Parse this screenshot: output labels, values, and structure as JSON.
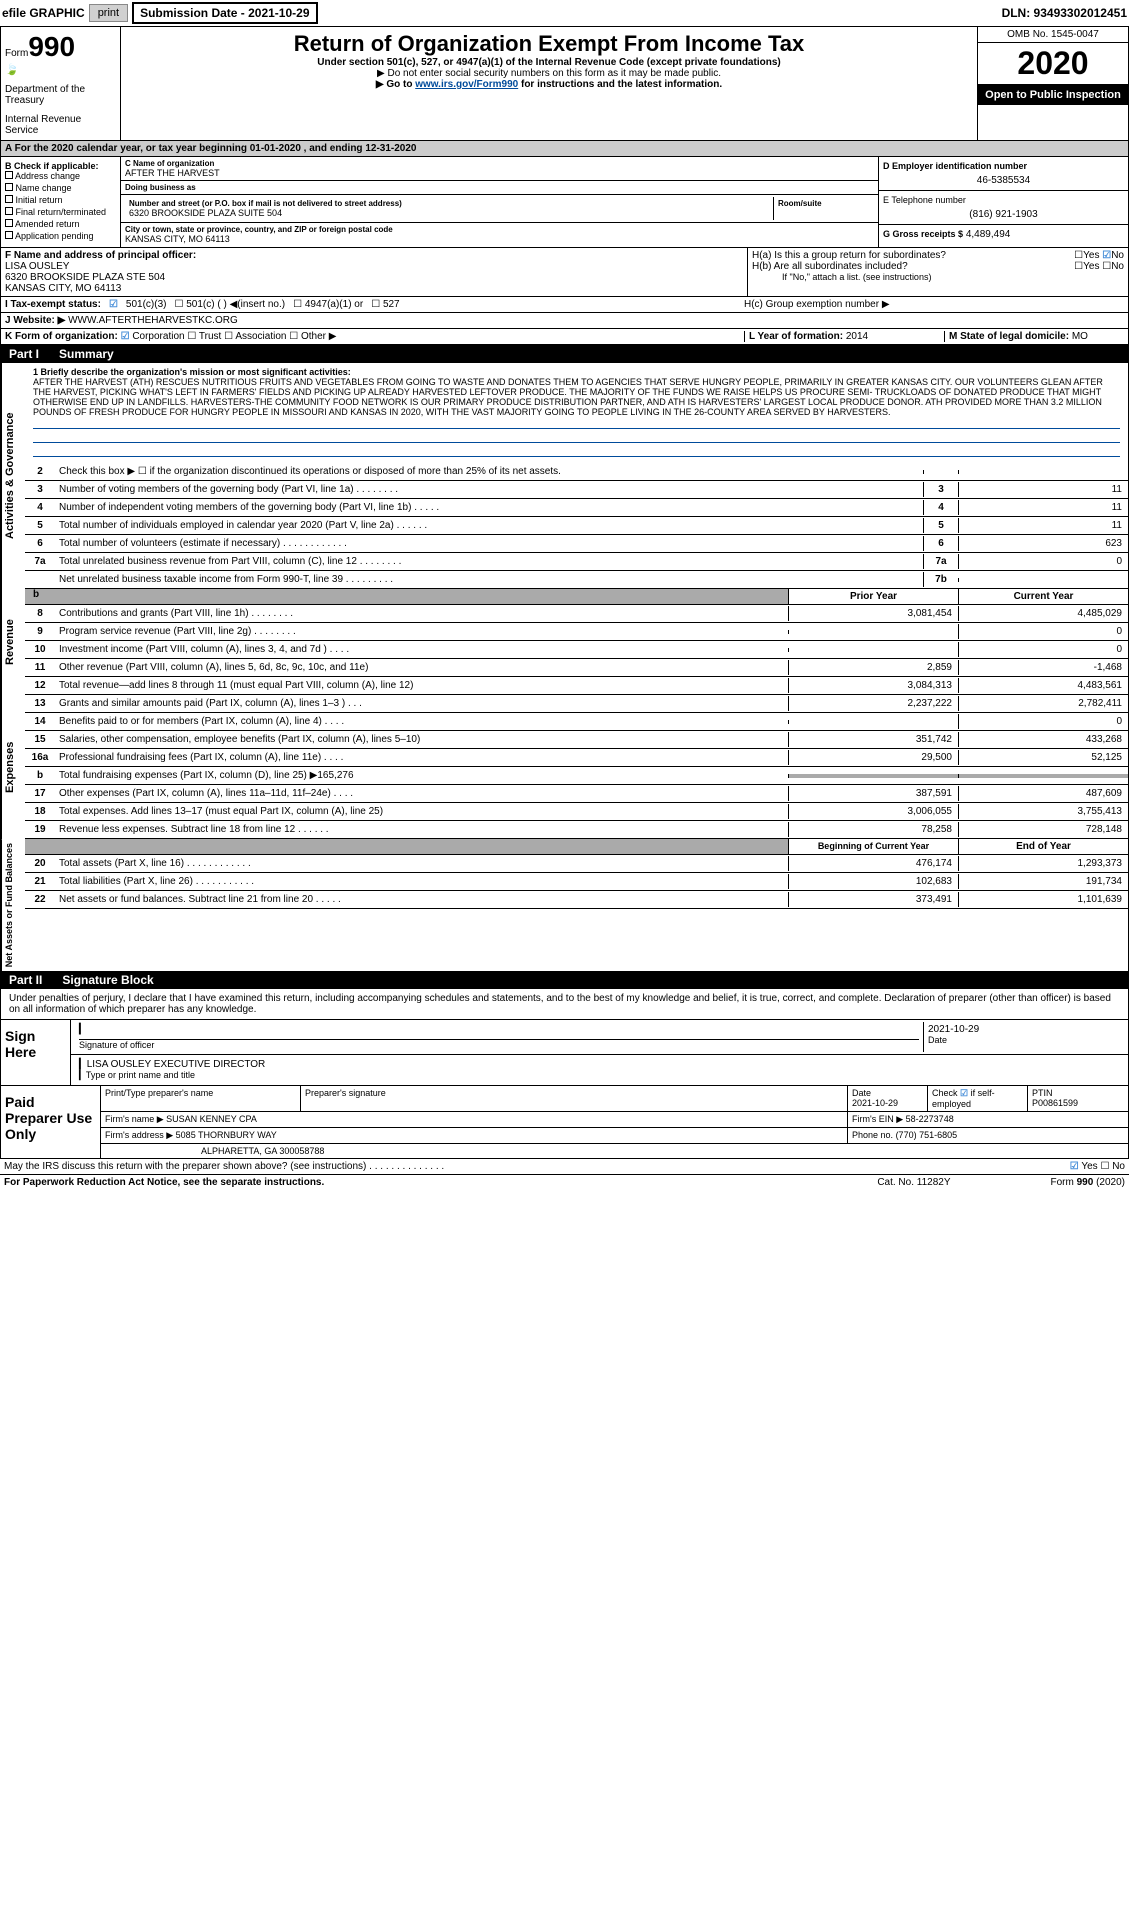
{
  "header": {
    "efile": "efile GRAPHIC",
    "print": "print",
    "subdate_label": "Submission Date - 2021-10-29",
    "dln": "DLN: 93493302012451"
  },
  "form": {
    "prefix": "Form",
    "number": "990",
    "dept": "Department of the Treasury",
    "irs": "Internal Revenue Service"
  },
  "title": {
    "main": "Return of Organization Exempt From Income Tax",
    "sub1": "Under section 501(c), 527, or 4947(a)(1) of the Internal Revenue Code (except private foundations)",
    "sub2": "▶ Do not enter social security numbers on this form as it may be made public.",
    "sub3a": "▶ Go to ",
    "sub3link": "www.irs.gov/Form990",
    "sub3b": " for instructions and the latest information."
  },
  "omb": {
    "num": "OMB No. 1545-0047",
    "year": "2020",
    "open": "Open to Public Inspection"
  },
  "rowA": "A For the 2020 calendar year, or tax year beginning 01-01-2020    , and ending 12-31-2020",
  "b": {
    "label": "B Check if applicable:",
    "opts": [
      "Address change",
      "Name change",
      "Initial return",
      "Final return/terminated",
      "Amended return",
      "Application pending"
    ]
  },
  "c": {
    "name_label": "C Name of organization",
    "name": "AFTER THE HARVEST",
    "dba_label": "Doing business as",
    "dba": "",
    "addr_label": "Number and street (or P.O. box if mail is not delivered to street address)",
    "addr": "6320 BROOKSIDE PLAZA SUITE 504",
    "room_label": "Room/suite",
    "city_label": "City or town, state or province, country, and ZIP or foreign postal code",
    "city": "KANSAS CITY, MO  64113"
  },
  "d": {
    "label": "D Employer identification number",
    "val": "46-5385534"
  },
  "e": {
    "label": "E Telephone number",
    "val": "(816) 921-1903"
  },
  "g": {
    "label": "G Gross receipts $",
    "val": "4,489,494"
  },
  "f": {
    "label": "F  Name and address of principal officer:",
    "name": "LISA OUSLEY",
    "addr": "6320 BROOKSIDE PLAZA STE 504",
    "city": "KANSAS CITY, MO  64113"
  },
  "h": {
    "a": "H(a)  Is this a group return for subordinates?",
    "b": "H(b)  Are all subordinates included?",
    "note": "If \"No,\" attach a list. (see instructions)",
    "c": "H(c)  Group exemption number ▶",
    "yes": "Yes",
    "no": "No"
  },
  "i": {
    "label": "I   Tax-exempt status:",
    "opts": [
      "501(c)(3)",
      "501(c) (  ) ◀(insert no.)",
      "4947(a)(1) or",
      "527"
    ]
  },
  "j": {
    "label": "J   Website: ▶",
    "val": "WWW.AFTERTHEHARVESTKC.ORG"
  },
  "k": {
    "label": "K Form of organization:",
    "opts": [
      "Corporation",
      "Trust",
      "Association",
      "Other ▶"
    ]
  },
  "l": {
    "label": "L Year of formation:",
    "val": "2014"
  },
  "m": {
    "label": "M State of legal domicile:",
    "val": "MO"
  },
  "part1": {
    "num": "Part I",
    "title": "Summary"
  },
  "mission": {
    "label": "1  Briefly describe the organization's mission or most significant activities:",
    "text": "AFTER THE HARVEST (ATH) RESCUES NUTRITIOUS FRUITS AND VEGETABLES FROM GOING TO WASTE AND DONATES THEM TO AGENCIES THAT SERVE HUNGRY PEOPLE, PRIMARILY IN GREATER KANSAS CITY. OUR VOLUNTEERS GLEAN AFTER THE HARVEST, PICKING WHAT'S LEFT IN FARMERS' FIELDS AND PICKING UP ALREADY HARVESTED LEFTOVER PRODUCE. THE MAJORITY OF THE FUNDS WE RAISE HELPS US PROCURE SEMI- TRUCKLOADS OF DONATED PRODUCE THAT MIGHT OTHERWISE END UP IN LANDFILLS. HARVESTERS-THE COMMUNITY FOOD NETWORK IS OUR PRIMARY PRODUCE DISTRIBUTION PARTNER, AND ATH IS HARVESTERS' LARGEST LOCAL PRODUCE DONOR. ATH PROVIDED MORE THAN 3.2 MILLION POUNDS OF FRESH PRODUCE FOR HUNGRY PEOPLE IN MISSOURI AND KANSAS IN 2020, WITH THE VAST MAJORITY GOING TO PEOPLE LIVING IN THE 26-COUNTY AREA SERVED BY HARVESTERS."
  },
  "lines_ag": [
    {
      "n": "2",
      "t": "Check this box ▶ ☐  if the organization discontinued its operations or disposed of more than 25% of its net assets.",
      "b": "",
      "v": ""
    },
    {
      "n": "3",
      "t": "Number of voting members of the governing body (Part VI, line 1a)    .    .    .    .    .    .    .    .",
      "b": "3",
      "v": "11"
    },
    {
      "n": "4",
      "t": "Number of independent voting members of the governing body (Part VI, line 1b)    .    .    .    .    .",
      "b": "4",
      "v": "11"
    },
    {
      "n": "5",
      "t": "Total number of individuals employed in calendar year 2020 (Part V, line 2a)    .    .    .    .    .    .",
      "b": "5",
      "v": "11"
    },
    {
      "n": "6",
      "t": "Total number of volunteers (estimate if necessary)   .    .    .    .    .    .    .    .    .    .    .    .",
      "b": "6",
      "v": "623"
    },
    {
      "n": "7a",
      "t": "Total unrelated business revenue from Part VIII, column (C), line 12   .    .    .    .    .    .    .    .",
      "b": "7a",
      "v": "0"
    },
    {
      "n": "",
      "t": "Net unrelated business taxable income from Form 990-T, line 39    .    .    .    .    .    .    .    .    .",
      "b": "7b",
      "v": ""
    }
  ],
  "headers2": {
    "prior": "Prior Year",
    "current": "Current Year"
  },
  "lines_rev": [
    {
      "n": "8",
      "t": "Contributions and grants (Part VIII, line 1h)   .    .    .    .    .    .    .    .",
      "p": "3,081,454",
      "c": "4,485,029"
    },
    {
      "n": "9",
      "t": "Program service revenue (Part VIII, line 2g)    .    .    .    .    .    .    .    .",
      "p": "",
      "c": "0"
    },
    {
      "n": "10",
      "t": "Investment income (Part VIII, column (A), lines 3, 4, and 7d )    .    .    .    .",
      "p": "",
      "c": "0"
    },
    {
      "n": "11",
      "t": "Other revenue (Part VIII, column (A), lines 5, 6d, 8c, 9c, 10c, and 11e)",
      "p": "2,859",
      "c": "-1,468"
    },
    {
      "n": "12",
      "t": "Total revenue—add lines 8 through 11 (must equal Part VIII, column (A), line 12)",
      "p": "3,084,313",
      "c": "4,483,561"
    }
  ],
  "lines_exp": [
    {
      "n": "13",
      "t": "Grants and similar amounts paid (Part IX, column (A), lines 1–3 )  .    .    .",
      "p": "2,237,222",
      "c": "2,782,411"
    },
    {
      "n": "14",
      "t": "Benefits paid to or for members (Part IX, column (A), line 4)   .    .    .    .",
      "p": "",
      "c": "0"
    },
    {
      "n": "15",
      "t": "Salaries, other compensation, employee benefits (Part IX, column (A), lines 5–10)",
      "p": "351,742",
      "c": "433,268"
    },
    {
      "n": "16a",
      "t": "Professional fundraising fees (Part IX, column (A), line 11e)   .    .    .    .",
      "p": "29,500",
      "c": "52,125"
    },
    {
      "n": "b",
      "t": "Total fundraising expenses (Part IX, column (D), line 25) ▶165,276",
      "p": "grey",
      "c": "grey"
    },
    {
      "n": "17",
      "t": "Other expenses (Part IX, column (A), lines 11a–11d, 11f–24e)   .    .    .    .",
      "p": "387,591",
      "c": "487,609"
    },
    {
      "n": "18",
      "t": "Total expenses. Add lines 13–17 (must equal Part IX, column (A), line 25)",
      "p": "3,006,055",
      "c": "3,755,413"
    },
    {
      "n": "19",
      "t": "Revenue less expenses. Subtract line 18 from line 12  .    .    .    .    .    .",
      "p": "78,258",
      "c": "728,148"
    }
  ],
  "headers3": {
    "begin": "Beginning of Current Year",
    "end": "End of Year"
  },
  "lines_na": [
    {
      "n": "20",
      "t": "Total assets (Part X, line 16)  .    .    .    .    .    .    .    .    .    .    .    .",
      "p": "476,174",
      "c": "1,293,373"
    },
    {
      "n": "21",
      "t": "Total liabilities (Part X, line 26)   .    .    .    .    .    .    .    .    .    .    .",
      "p": "102,683",
      "c": "191,734"
    },
    {
      "n": "22",
      "t": "Net assets or fund balances. Subtract line 21 from line 20   .    .    .    .    .",
      "p": "373,491",
      "c": "1,101,639"
    }
  ],
  "tabs": {
    "ag": "Activities & Governance",
    "rev": "Revenue",
    "exp": "Expenses",
    "na": "Net Assets or Fund Balances"
  },
  "part2": {
    "num": "Part II",
    "title": "Signature Block"
  },
  "sig": {
    "declare": "Under penalties of perjury, I declare that I have examined this return, including accompanying schedules and statements, and to the best of my knowledge and belief, it is true, correct, and complete. Declaration of preparer (other than officer) is based on all information of which preparer has any knowledge.",
    "sign_here": "Sign Here",
    "sig_officer": "Signature of officer",
    "date": "Date",
    "date_val": "2021-10-29",
    "name_title": "LISA OUSLEY  EXECUTIVE DIRECTOR",
    "type_name": "Type or print name and title"
  },
  "paid": {
    "label": "Paid Preparer Use Only",
    "h1": "Print/Type preparer's name",
    "h2": "Preparer's signature",
    "h3": "Date",
    "h3v": "2021-10-29",
    "h4a": "Check",
    "h4b": "if self-employed",
    "h5": "PTIN",
    "h5v": "P00861599",
    "firm_name_l": "Firm's name    ▶",
    "firm_name": "SUSAN KENNEY CPA",
    "firm_ein_l": "Firm's EIN ▶",
    "firm_ein": "58-2273748",
    "firm_addr_l": "Firm's address ▶",
    "firm_addr": "5085 THORNBURY WAY",
    "firm_addr2": "ALPHARETTA, GA  300058788",
    "phone_l": "Phone no.",
    "phone": "(770) 751-6805"
  },
  "footer": {
    "discuss": "May the IRS discuss this return with the preparer shown above? (see instructions)    .    .    .    .    .    .    .    .    .    .    .    .    .    .",
    "yes": "Yes",
    "no": "No",
    "paperwork": "For Paperwork Reduction Act Notice, see the separate instructions.",
    "cat": "Cat. No. 11282Y",
    "form": "Form 990 (2020)"
  },
  "colors": {
    "link": "#004b9b",
    "check": "#4a90d9",
    "grey": "#aaaaaa",
    "black": "#000000"
  }
}
